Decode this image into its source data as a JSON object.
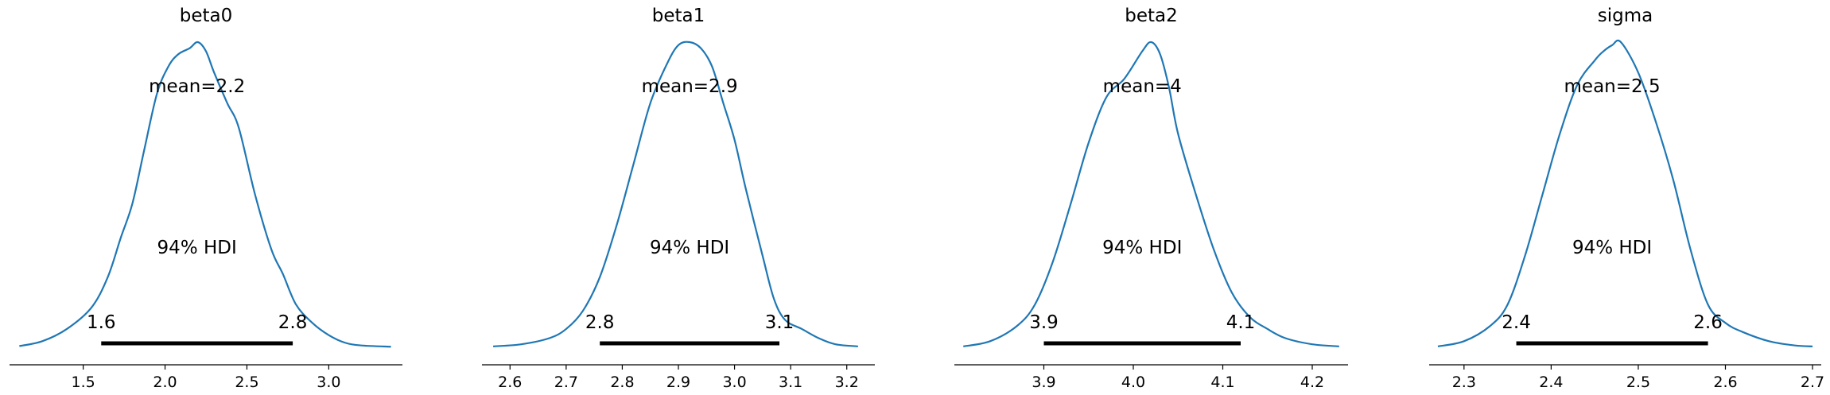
{
  "colors": {
    "density": "#1f77b4",
    "hdi_bar": "#000000",
    "axis": "#000000"
  },
  "chart_data": [
    {
      "type": "area",
      "title": "beta0",
      "mean_label": "mean=2.2",
      "hdi_label": "94% HDI",
      "hdi_low_label": "1.6",
      "hdi_high_label": "2.8",
      "hdi": [
        1.61,
        2.78
      ],
      "xlim": [
        1.05,
        3.45
      ],
      "ticks": [
        1.5,
        2.0,
        2.5,
        3.0
      ],
      "tick_labels": [
        "1.5",
        "2.0",
        "2.5",
        "3.0"
      ],
      "x": [
        1.11,
        1.25,
        1.4,
        1.55,
        1.65,
        1.73,
        1.8,
        1.87,
        1.95,
        2.02,
        2.08,
        2.15,
        2.2,
        2.25,
        2.3,
        2.38,
        2.45,
        2.55,
        2.65,
        2.72,
        2.8,
        2.9,
        3.0,
        3.1,
        3.2,
        3.38
      ],
      "density": [
        0.004,
        0.02,
        0.06,
        0.13,
        0.23,
        0.36,
        0.47,
        0.64,
        0.83,
        0.92,
        0.96,
        0.98,
        1.0,
        0.97,
        0.9,
        0.8,
        0.72,
        0.5,
        0.32,
        0.24,
        0.14,
        0.08,
        0.04,
        0.015,
        0.006,
        0.002
      ]
    },
    {
      "type": "area",
      "title": "beta1",
      "mean_label": "mean=2.9",
      "hdi_label": "94% HDI",
      "hdi_low_label": "2.8",
      "hdi_high_label": "3.1",
      "hdi": [
        2.76,
        3.08
      ],
      "xlim": [
        2.55,
        3.25
      ],
      "ticks": [
        2.6,
        2.7,
        2.8,
        2.9,
        3.0,
        3.1,
        3.2
      ],
      "tick_labels": [
        "2.6",
        "2.7",
        "2.8",
        "2.9",
        "3.0",
        "3.1",
        "3.2"
      ],
      "x": [
        2.57,
        2.62,
        2.67,
        2.7,
        2.73,
        2.76,
        2.79,
        2.82,
        2.85,
        2.88,
        2.9,
        2.92,
        2.94,
        2.96,
        2.98,
        3.0,
        3.02,
        3.05,
        3.07,
        3.09,
        3.12,
        3.15,
        3.18,
        3.22
      ],
      "density": [
        0.003,
        0.01,
        0.03,
        0.06,
        0.12,
        0.23,
        0.4,
        0.6,
        0.8,
        0.93,
        0.99,
        1.0,
        0.98,
        0.92,
        0.8,
        0.68,
        0.52,
        0.3,
        0.16,
        0.09,
        0.06,
        0.03,
        0.01,
        0.003
      ]
    },
    {
      "type": "area",
      "title": "beta2",
      "mean_label": "mean=4",
      "hdi_label": "94% HDI",
      "hdi_low_label": "3.9",
      "hdi_high_label": "4.1",
      "hdi": [
        3.9,
        4.12
      ],
      "xlim": [
        3.8,
        4.24
      ],
      "ticks": [
        3.9,
        4.0,
        4.1,
        4.2
      ],
      "tick_labels": [
        "3.9",
        "4.0",
        "4.1",
        "4.2"
      ],
      "x": [
        3.81,
        3.84,
        3.87,
        3.89,
        3.91,
        3.93,
        3.95,
        3.97,
        3.99,
        4.01,
        4.02,
        4.03,
        4.04,
        4.05,
        4.07,
        4.09,
        4.11,
        4.13,
        4.15,
        4.17,
        4.2,
        4.23
      ],
      "density": [
        0.003,
        0.02,
        0.07,
        0.14,
        0.28,
        0.47,
        0.67,
        0.82,
        0.88,
        0.97,
        1.0,
        0.96,
        0.85,
        0.7,
        0.5,
        0.32,
        0.18,
        0.1,
        0.06,
        0.03,
        0.01,
        0.003
      ]
    },
    {
      "type": "area",
      "title": "sigma",
      "mean_label": "mean=2.5",
      "hdi_label": "94% HDI",
      "hdi_low_label": "2.4",
      "hdi_high_label": "2.6",
      "hdi": [
        2.36,
        2.58
      ],
      "xlim": [
        2.26,
        2.71
      ],
      "ticks": [
        2.3,
        2.4,
        2.5,
        2.6,
        2.7
      ],
      "tick_labels": [
        "2.3",
        "2.4",
        "2.5",
        "2.6",
        "2.7"
      ],
      "x": [
        2.27,
        2.3,
        2.33,
        2.35,
        2.37,
        2.39,
        2.41,
        2.43,
        2.45,
        2.46,
        2.47,
        2.48,
        2.5,
        2.52,
        2.54,
        2.56,
        2.58,
        2.6,
        2.62,
        2.65,
        2.68,
        2.7
      ],
      "density": [
        0.003,
        0.02,
        0.07,
        0.14,
        0.3,
        0.5,
        0.7,
        0.86,
        0.94,
        0.97,
        0.99,
        1.0,
        0.9,
        0.74,
        0.55,
        0.32,
        0.14,
        0.08,
        0.05,
        0.02,
        0.006,
        0.003
      ]
    }
  ]
}
